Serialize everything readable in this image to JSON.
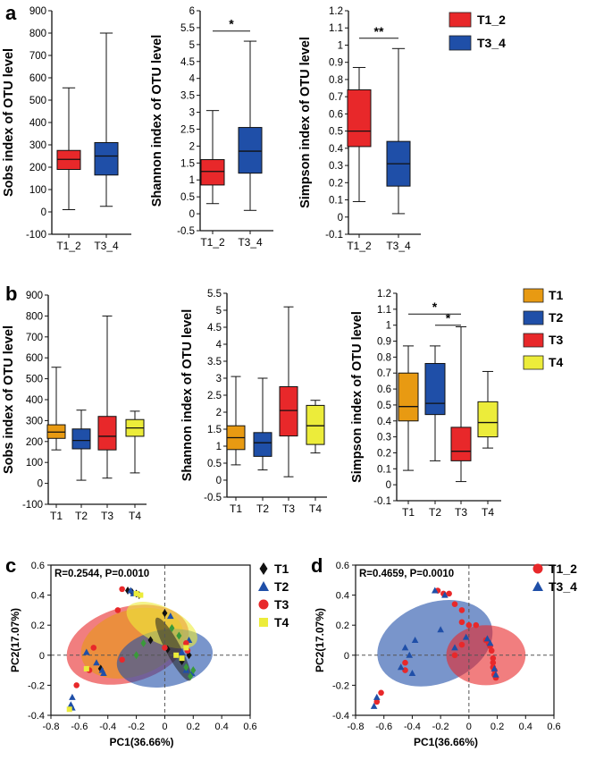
{
  "panel_labels": {
    "a": "a",
    "b": "b",
    "c": "c",
    "d": "d"
  },
  "colors": {
    "T1_2": "#e8282a",
    "T3_4": "#1f4fa8",
    "T1": "#e89a12",
    "T2": "#1f4fa8",
    "T3": "#e8282a",
    "T4": "#ecec3a"
  },
  "chart_data": [
    {
      "id": "a-sobs",
      "type": "boxplot",
      "panel": "a",
      "ylabel": "Sobs index of OTU level",
      "ylim": [
        -100,
        900
      ],
      "yticks": [
        -100,
        0,
        100,
        200,
        300,
        400,
        500,
        600,
        700,
        800,
        900
      ],
      "categories": [
        "T1_2",
        "T3_4"
      ],
      "boxes": [
        {
          "name": "T1_2",
          "min": 10,
          "q1": 190,
          "median": 235,
          "q3": 275,
          "max": 555
        },
        {
          "name": "T3_4",
          "min": 25,
          "q1": 165,
          "median": 250,
          "q3": 310,
          "max": 800
        }
      ],
      "significance": []
    },
    {
      "id": "a-shannon",
      "type": "boxplot",
      "panel": "a",
      "ylabel": "Shannon index of OTU level",
      "ylim": [
        -0.5,
        6
      ],
      "yticks": [
        -0.5,
        0,
        0.5,
        1,
        1.5,
        2,
        2.5,
        3,
        3.5,
        4,
        4.5,
        5,
        5.5,
        6
      ],
      "categories": [
        "T1_2",
        "T3_4"
      ],
      "boxes": [
        {
          "name": "T1_2",
          "min": 0.3,
          "q1": 0.85,
          "median": 1.25,
          "q3": 1.6,
          "max": 3.05
        },
        {
          "name": "T3_4",
          "min": 0.1,
          "q1": 1.2,
          "median": 1.85,
          "q3": 2.55,
          "max": 5.1
        }
      ],
      "significance": [
        {
          "from": 0,
          "to": 1,
          "label": "*",
          "y": 5.4
        }
      ]
    },
    {
      "id": "a-simpson",
      "type": "boxplot",
      "panel": "a",
      "ylabel": "Simpson index of OTU level",
      "ylim": [
        -0.1,
        1.2
      ],
      "yticks": [
        -0.1,
        0,
        0.1,
        0.2,
        0.3,
        0.4,
        0.5,
        0.6,
        0.7,
        0.8,
        0.9,
        1,
        1.1,
        1.2
      ],
      "categories": [
        "T1_2",
        "T3_4"
      ],
      "boxes": [
        {
          "name": "T1_2",
          "min": 0.09,
          "q1": 0.41,
          "median": 0.5,
          "q3": 0.74,
          "max": 0.87
        },
        {
          "name": "T3_4",
          "min": 0.02,
          "q1": 0.18,
          "median": 0.31,
          "q3": 0.44,
          "max": 0.98
        }
      ],
      "significance": [
        {
          "from": 0,
          "to": 1,
          "label": "**",
          "y": 1.04
        }
      ]
    },
    {
      "id": "b-sobs",
      "type": "boxplot",
      "panel": "b",
      "ylabel": "Sobs index of OTU level",
      "ylim": [
        -100,
        900
      ],
      "yticks": [
        -100,
        0,
        100,
        200,
        300,
        400,
        500,
        600,
        700,
        800,
        900
      ],
      "categories": [
        "T1",
        "T2",
        "T3",
        "T4"
      ],
      "boxes": [
        {
          "name": "T1",
          "min": 160,
          "q1": 215,
          "median": 245,
          "q3": 280,
          "max": 555
        },
        {
          "name": "T2",
          "min": 15,
          "q1": 165,
          "median": 205,
          "q3": 260,
          "max": 350
        },
        {
          "name": "T3",
          "min": 25,
          "q1": 160,
          "median": 225,
          "q3": 320,
          "max": 800
        },
        {
          "name": "T4",
          "min": 50,
          "q1": 225,
          "median": 265,
          "q3": 305,
          "max": 345
        }
      ],
      "significance": []
    },
    {
      "id": "b-shannon",
      "type": "boxplot",
      "panel": "b",
      "ylabel": "Shannon index of OTU level",
      "ylim": [
        -0.5,
        5.5
      ],
      "yticks": [
        -0.5,
        0,
        0.5,
        1,
        1.5,
        2,
        2.5,
        3,
        3.5,
        4,
        4.5,
        5,
        5.5
      ],
      "categories": [
        "T1",
        "T2",
        "T3",
        "T4"
      ],
      "boxes": [
        {
          "name": "T1",
          "min": 0.45,
          "q1": 0.9,
          "median": 1.25,
          "q3": 1.6,
          "max": 3.05
        },
        {
          "name": "T2",
          "min": 0.3,
          "q1": 0.7,
          "median": 1.1,
          "q3": 1.4,
          "max": 3.0
        },
        {
          "name": "T3",
          "min": 0.1,
          "q1": 1.3,
          "median": 2.05,
          "q3": 2.75,
          "max": 5.1
        },
        {
          "name": "T4",
          "min": 0.8,
          "q1": 1.05,
          "median": 1.6,
          "q3": 2.2,
          "max": 2.35
        }
      ],
      "significance": []
    },
    {
      "id": "b-simpson",
      "type": "boxplot",
      "panel": "b",
      "ylabel": "Simpson index of OTU level",
      "ylim": [
        -0.1,
        1.2
      ],
      "yticks": [
        -0.1,
        0,
        0.1,
        0.2,
        0.3,
        0.4,
        0.5,
        0.6,
        0.7,
        0.8,
        0.9,
        1,
        1.1,
        1.2
      ],
      "categories": [
        "T1",
        "T2",
        "T3",
        "T4"
      ],
      "boxes": [
        {
          "name": "T1",
          "min": 0.09,
          "q1": 0.4,
          "median": 0.49,
          "q3": 0.7,
          "max": 0.87
        },
        {
          "name": "T2",
          "min": 0.15,
          "q1": 0.44,
          "median": 0.51,
          "q3": 0.76,
          "max": 0.87
        },
        {
          "name": "T3",
          "min": 0.02,
          "q1": 0.15,
          "median": 0.21,
          "q3": 0.36,
          "max": 0.99
        },
        {
          "name": "T4",
          "min": 0.23,
          "q1": 0.3,
          "median": 0.39,
          "q3": 0.52,
          "max": 0.71
        }
      ],
      "significance": [
        {
          "from": 0,
          "to": 2,
          "label": "*",
          "y": 1.07
        },
        {
          "from": 1,
          "to": 2,
          "label": "*",
          "y": 1.0
        }
      ]
    },
    {
      "id": "c-pca",
      "type": "scatter",
      "panel": "c",
      "xlabel": "PC1(36.66%)",
      "ylabel": "PC2(17.07%)",
      "xlim": [
        -0.8,
        0.6
      ],
      "ylim": [
        -0.4,
        0.6
      ],
      "xticks": [
        -0.8,
        -0.6,
        -0.4,
        -0.2,
        0,
        0.2,
        0.4,
        0.6
      ],
      "yticks": [
        -0.4,
        -0.2,
        0,
        0.2,
        0.4,
        0.6
      ],
      "annotation": "R=0.2544, P=0.0010",
      "ellipses": [
        {
          "group": "T3",
          "color": "#e8282a",
          "cx": -0.26,
          "cy": 0.07,
          "rx": 0.44,
          "ry": 0.25,
          "angle": 16
        },
        {
          "group": "T1",
          "color": "#e89a12",
          "cx": -0.23,
          "cy": 0.08,
          "rx": 0.37,
          "ry": 0.22,
          "angle": 18
        },
        {
          "group": "T2",
          "color": "#1f4fa8",
          "cx": 0.0,
          "cy": -0.02,
          "rx": 0.34,
          "ry": 0.19,
          "angle": 10
        },
        {
          "group": "T4",
          "color": "#ecec3a",
          "cx": -0.02,
          "cy": 0.2,
          "rx": 0.27,
          "ry": 0.12,
          "angle": -26
        },
        {
          "group": "T1dark",
          "color": "#222222",
          "cx": 0.06,
          "cy": 0.04,
          "rx": 0.25,
          "ry": 0.05,
          "angle": -62
        }
      ],
      "series": [
        {
          "name": "T1",
          "marker": "diamond",
          "color": "#111111",
          "points": [
            [
              -0.26,
              0.43
            ],
            [
              -0.23,
              0.42
            ],
            [
              -0.2,
              0.41
            ],
            [
              -0.18,
              0.4
            ],
            [
              0.0,
              0.28
            ],
            [
              -0.1,
              0.1
            ],
            [
              0.02,
              0.04
            ],
            [
              -0.45,
              -0.09
            ],
            [
              0.17,
              0.0
            ],
            [
              0.12,
              -0.04
            ]
          ]
        },
        {
          "name": "T2",
          "marker": "triangle",
          "color": "#1f4fa8",
          "points": [
            [
              -0.65,
              -0.28
            ],
            [
              -0.66,
              -0.33
            ],
            [
              -0.65,
              -0.35
            ],
            [
              -0.55,
              0.02
            ],
            [
              -0.48,
              -0.05
            ],
            [
              -0.44,
              -0.1
            ],
            [
              -0.24,
              0.43
            ],
            [
              -0.22,
              0.41
            ],
            [
              0.15,
              -0.1
            ],
            [
              0.19,
              -0.12
            ],
            [
              0.17,
              0.1
            ],
            [
              0.12,
              0.02
            ],
            [
              -0.43,
              -0.12
            ],
            [
              0.04,
              0.26
            ]
          ]
        },
        {
          "name": "T3",
          "marker": "circle",
          "color": "#e8282a",
          "points": [
            [
              -0.3,
              0.44
            ],
            [
              -0.62,
              -0.2
            ],
            [
              -0.53,
              -0.1
            ],
            [
              -0.5,
              0.05
            ],
            [
              -0.3,
              -0.03
            ],
            [
              0.0,
              0.05
            ],
            [
              -0.33,
              0.3
            ],
            [
              0.16,
              0.03
            ],
            [
              0.15,
              0.08
            ]
          ]
        },
        {
          "name": "T4",
          "marker": "square",
          "color": "#ecec3a",
          "points": [
            [
              -0.67,
              -0.36
            ],
            [
              -0.55,
              -0.09
            ],
            [
              -0.2,
              0.41
            ],
            [
              -0.17,
              0.4
            ],
            [
              0.08,
              0.0
            ],
            [
              0.12,
              -0.02
            ],
            [
              0.15,
              0.05
            ]
          ]
        },
        {
          "name": "T1green",
          "marker": "diamond",
          "color": "#3a9a3a",
          "points": [
            [
              -0.2,
              0.0
            ],
            [
              -0.15,
              0.08
            ],
            [
              0.1,
              0.13
            ],
            [
              0.15,
              -0.08
            ],
            [
              0.18,
              -0.14
            ],
            [
              0.2,
              -0.1
            ],
            [
              0.05,
              0.18
            ]
          ]
        }
      ],
      "legend": [
        "T1",
        "T2",
        "T3",
        "T4"
      ]
    },
    {
      "id": "d-pca",
      "type": "scatter",
      "panel": "d",
      "xlabel": "PC1(36.66%)",
      "ylabel": "PC2(17.07%)",
      "xlim": [
        -0.8,
        0.6
      ],
      "ylim": [
        -0.4,
        0.6
      ],
      "xticks": [
        -0.8,
        -0.6,
        -0.4,
        -0.2,
        0,
        0.2,
        0.4,
        0.6
      ],
      "yticks": [
        -0.4,
        -0.2,
        0,
        0.2,
        0.4,
        0.6
      ],
      "annotation": "R=0.4659, P=0.0010",
      "ellipses": [
        {
          "group": "T3_4",
          "color": "#1f4fa8",
          "cx": -0.24,
          "cy": 0.08,
          "rx": 0.42,
          "ry": 0.27,
          "angle": 20
        },
        {
          "group": "T1_2",
          "color": "#e8282a",
          "cx": 0.12,
          "cy": 0.0,
          "rx": 0.28,
          "ry": 0.2,
          "angle": 0
        }
      ],
      "series": [
        {
          "name": "T1_2",
          "marker": "circle",
          "color": "#e8282a",
          "points": [
            [
              -0.22,
              0.43
            ],
            [
              -0.18,
              0.41
            ],
            [
              -0.14,
              0.41
            ],
            [
              -0.1,
              0.34
            ],
            [
              -0.05,
              0.3
            ],
            [
              -0.05,
              0.22
            ],
            [
              0.0,
              0.2
            ],
            [
              0.05,
              0.2
            ],
            [
              0.12,
              0.1
            ],
            [
              0.14,
              0.08
            ],
            [
              0.15,
              0.06
            ],
            [
              0.16,
              0.03
            ],
            [
              0.17,
              -0.02
            ],
            [
              0.17,
              -0.05
            ],
            [
              0.17,
              -0.08
            ],
            [
              0.18,
              -0.1
            ],
            [
              0.18,
              -0.13
            ],
            [
              0.19,
              -0.15
            ],
            [
              -0.05,
              0.07
            ],
            [
              -0.1,
              0.0
            ],
            [
              -0.45,
              -0.05
            ],
            [
              -0.45,
              -0.1
            ],
            [
              -0.62,
              -0.25
            ],
            [
              -0.65,
              -0.31
            ]
          ]
        },
        {
          "name": "T3_4",
          "marker": "triangle",
          "color": "#1f4fa8",
          "points": [
            [
              -0.24,
              0.43
            ],
            [
              -0.17,
              0.4
            ],
            [
              -0.65,
              -0.28
            ],
            [
              -0.67,
              -0.34
            ],
            [
              -0.45,
              0.05
            ],
            [
              -0.42,
              0.0
            ],
            [
              -0.48,
              -0.08
            ],
            [
              -0.4,
              -0.12
            ],
            [
              0.13,
              0.11
            ],
            [
              0.15,
              0.08
            ],
            [
              0.18,
              -0.09
            ],
            [
              0.19,
              -0.13
            ],
            [
              -0.1,
              0.05
            ],
            [
              -0.2,
              0.17
            ],
            [
              -0.02,
              0.12
            ],
            [
              -0.38,
              0.1
            ]
          ]
        }
      ],
      "legend": [
        "T1_2",
        "T3_4"
      ]
    }
  ]
}
